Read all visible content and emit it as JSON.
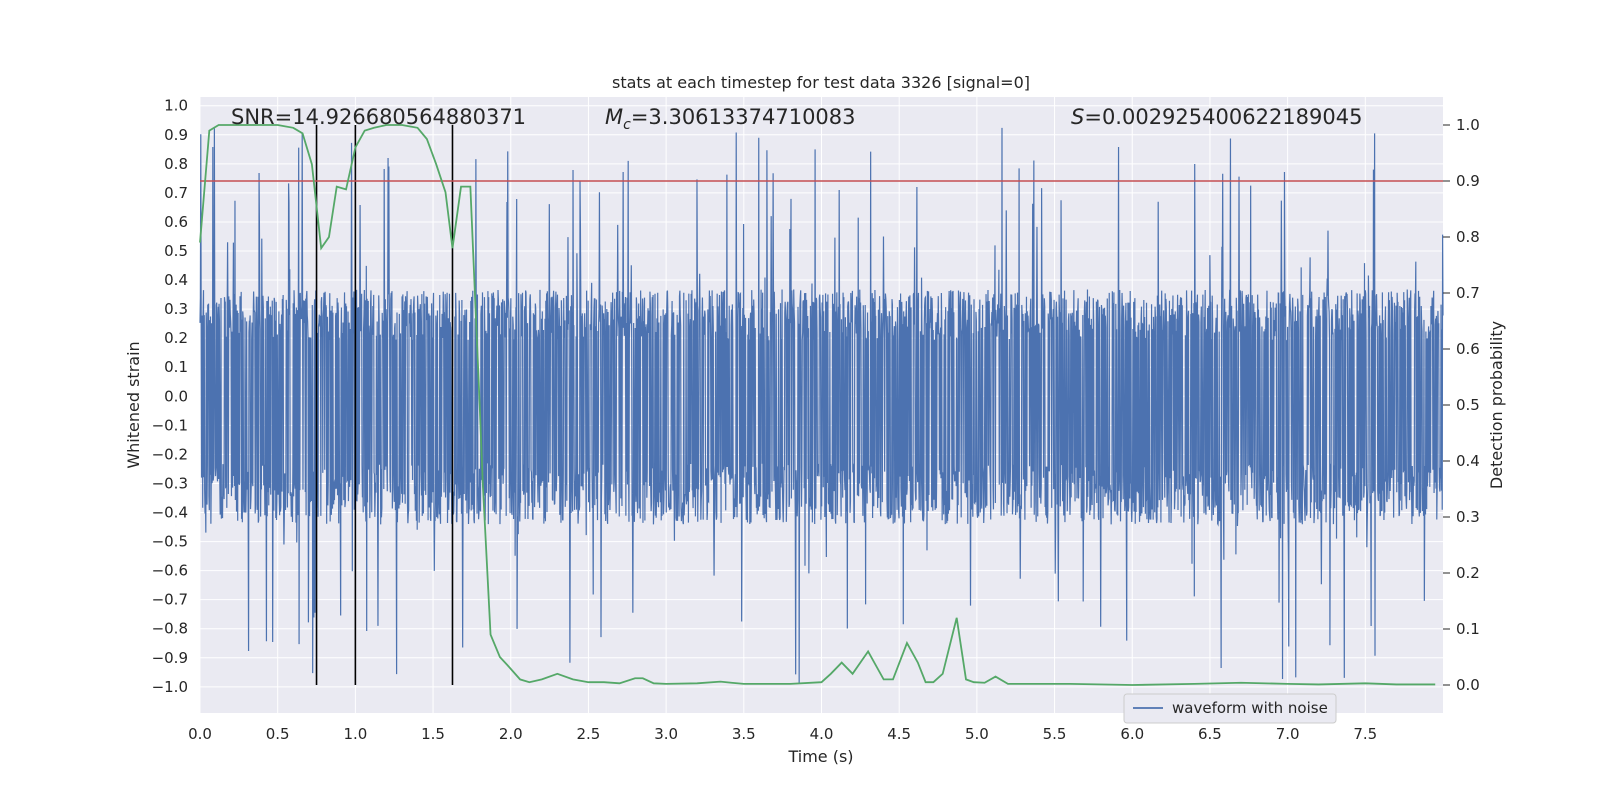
{
  "chart_data": {
    "type": "line",
    "title": "stats at each timestep for test data 3326 [signal=0]",
    "xlabel": "Time (s)",
    "ylabel_left": "Whitened strain",
    "ylabel_right": "Detection probability",
    "xlim": [
      0,
      8
    ],
    "ylim_left": [
      -1.09,
      1.03
    ],
    "ylim_right": [
      -0.05,
      1.05
    ],
    "x_ticks": [
      "0.0",
      "0.5",
      "1.0",
      "1.5",
      "2.0",
      "2.5",
      "3.0",
      "3.5",
      "4.0",
      "4.5",
      "5.0",
      "5.5",
      "6.0",
      "6.5",
      "7.0",
      "7.5"
    ],
    "y_left_ticks": [
      "1.0",
      "0.9",
      "0.8",
      "0.7",
      "0.6",
      "0.5",
      "0.4",
      "0.3",
      "0.2",
      "0.1",
      "0.0",
      "-0.1",
      "-0.2",
      "-0.3",
      "-0.4",
      "-0.5",
      "-0.6",
      "-0.7",
      "-0.8",
      "-0.9",
      "-1.0"
    ],
    "y_right_ticks": [
      "1.0",
      "0.9",
      "0.8",
      "0.7",
      "0.6",
      "0.5",
      "0.4",
      "0.3",
      "0.2",
      "0.1",
      "0.0"
    ],
    "annotations": {
      "snr": "SNR=14.926680564880371",
      "mc_symbol": "M",
      "mc_sub": "c",
      "mc_value": "=3.30613374710083",
      "s_symbol": "S",
      "s_value": "=0.002925400622189045"
    },
    "threshold": {
      "value": 0.9,
      "color": "#c44e52"
    },
    "vertical_markers": [
      0.75,
      1.0,
      1.625
    ],
    "series": [
      {
        "name": "waveform with noise",
        "color": "#4c72b0",
        "axis": "left",
        "envelope": {
          "typical_upper": 0.35,
          "typical_lower": -0.42,
          "spike_max": 0.93,
          "spike_min": -0.99
        }
      },
      {
        "name": "detection probability",
        "color": "#55a868",
        "axis": "right",
        "x": [
          0.0,
          0.06,
          0.12,
          0.25,
          0.5,
          0.6,
          0.66,
          0.72,
          0.78,
          0.83,
          0.88,
          0.94,
          1.0,
          1.06,
          1.12,
          1.2,
          1.3,
          1.4,
          1.46,
          1.52,
          1.58,
          1.625,
          1.68,
          1.74,
          1.8,
          1.82,
          1.87,
          1.93,
          1.98,
          2.06,
          2.12,
          2.2,
          2.3,
          2.4,
          2.5,
          2.6,
          2.7,
          2.8,
          2.85,
          2.92,
          3.0,
          3.2,
          3.35,
          3.42,
          3.5,
          3.8,
          4.0,
          4.06,
          4.13,
          4.2,
          4.3,
          4.4,
          4.46,
          4.55,
          4.62,
          4.67,
          4.72,
          4.78,
          4.87,
          4.93,
          4.98,
          5.05,
          5.12,
          5.2,
          5.3,
          5.6,
          6.0,
          6.4,
          6.7,
          7.0,
          7.2,
          7.5,
          7.7,
          7.95
        ],
        "values": [
          0.79,
          0.99,
          1.0,
          1.0,
          1.0,
          0.995,
          0.985,
          0.93,
          0.78,
          0.8,
          0.89,
          0.885,
          0.96,
          0.99,
          0.995,
          1.0,
          1.0,
          0.995,
          0.975,
          0.93,
          0.88,
          0.78,
          0.89,
          0.89,
          0.5,
          0.36,
          0.09,
          0.05,
          0.035,
          0.01,
          0.005,
          0.01,
          0.02,
          0.01,
          0.005,
          0.005,
          0.003,
          0.012,
          0.012,
          0.003,
          0.002,
          0.003,
          0.006,
          0.004,
          0.002,
          0.002,
          0.005,
          0.02,
          0.04,
          0.02,
          0.06,
          0.01,
          0.01,
          0.075,
          0.04,
          0.005,
          0.005,
          0.02,
          0.12,
          0.01,
          0.005,
          0.004,
          0.015,
          0.002,
          0.002,
          0.002,
          0.0,
          0.002,
          0.004,
          0.002,
          0.001,
          0.003,
          0.001,
          0.001
        ]
      }
    ],
    "legend": {
      "label": "waveform with noise",
      "placement": "lower-right"
    },
    "grid": true
  }
}
